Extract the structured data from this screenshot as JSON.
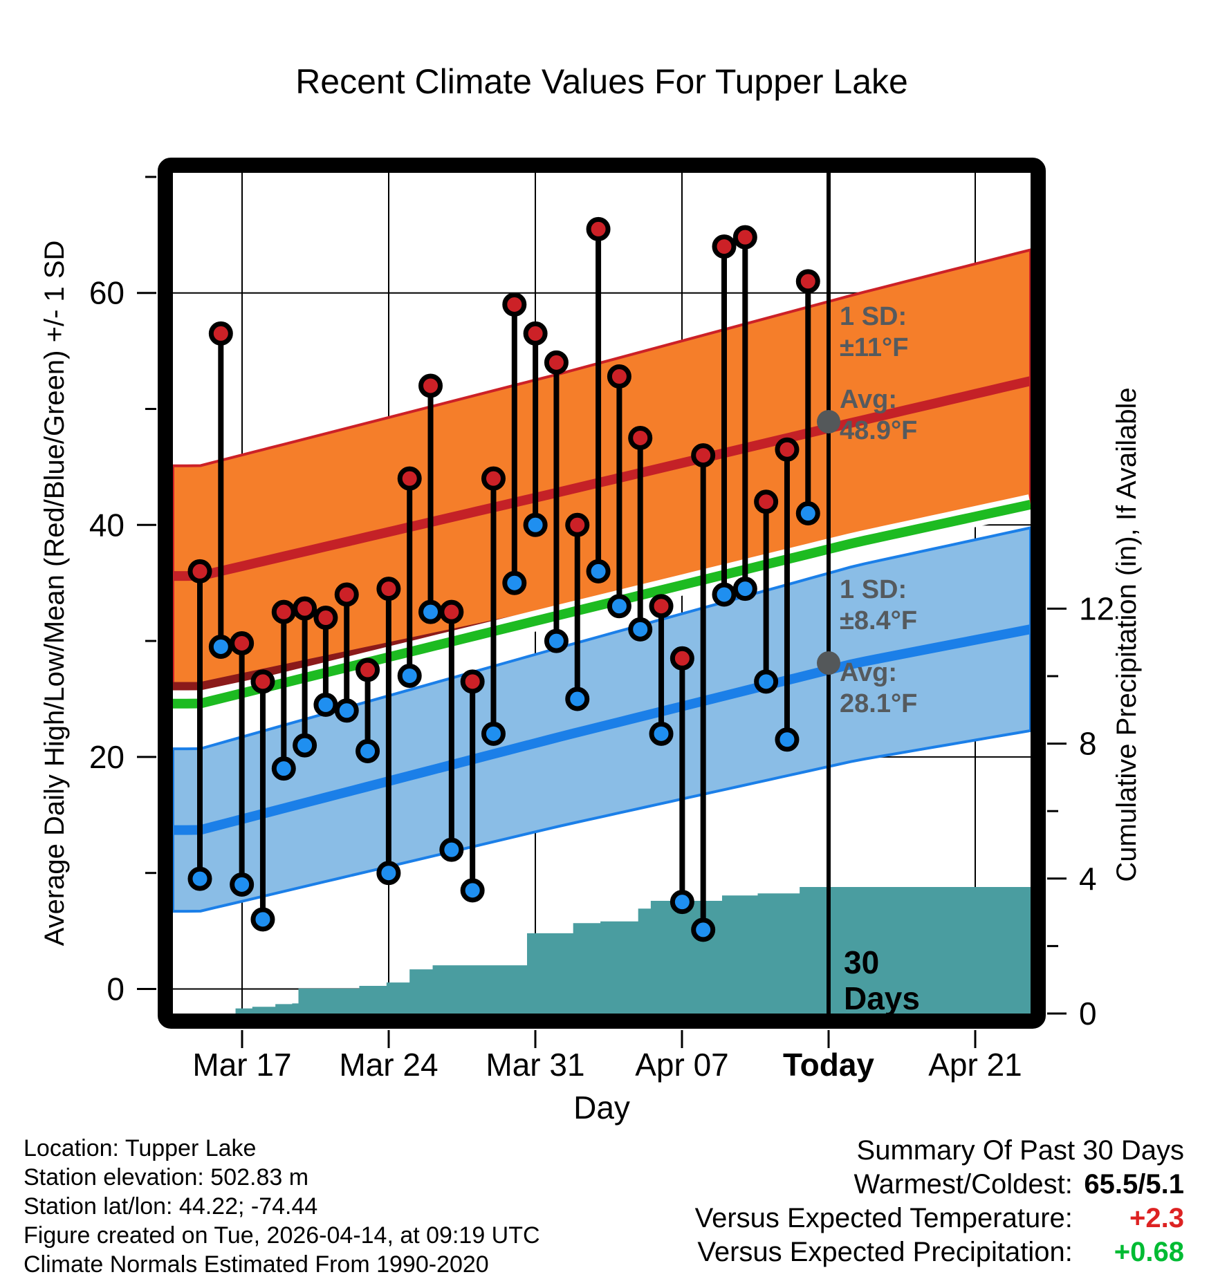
{
  "title": "Recent Climate Values For Tupper Lake",
  "axes": {
    "left": {
      "label": "Average Daily High/Low/Mean (Red/Blue/Green) +/- 1 SD",
      "ticks": [
        0,
        20,
        40,
        60
      ]
    },
    "right": {
      "label": "Cumulative Precipitation (in), If Available",
      "ticks": [
        0,
        4,
        8,
        12
      ]
    },
    "x": {
      "label": "Day",
      "tick_labels": [
        "Mar 17",
        "Mar 24",
        "Mar 31",
        "Apr 07",
        "Today",
        "Apr 21"
      ]
    }
  },
  "annotations": {
    "high": {
      "sd_label": "1 SD:",
      "sd_value": "±11°F",
      "avg_label": "Avg:",
      "avg_value": "48.9°F"
    },
    "low": {
      "sd_label": "1 SD:",
      "sd_value": "±8.4°F",
      "avg_label": "Avg:",
      "avg_value": "28.1°F"
    },
    "window": {
      "line1": "30",
      "line2": "Days"
    }
  },
  "footer": {
    "lines": [
      "Location: Tupper Lake",
      "Station elevation: 502.83 m",
      "Station lat/lon: 44.22; -74.44",
      "Figure created on Tue, 2026-04-14, at 09:19 UTC",
      "Climate Normals Estimated From 1990-2020"
    ]
  },
  "summary": {
    "title": "Summary Of Past 30 Days",
    "rows": [
      {
        "label": "Warmest/Coldest:",
        "value": "65.5/5.1",
        "color_class": "val-warm"
      },
      {
        "label": "Versus Expected Temperature:",
        "value": "+2.3",
        "color_class": "val-temp"
      },
      {
        "label": "Versus Expected Precipitation:",
        "value": "+0.68",
        "color_class": "val-precip"
      }
    ]
  },
  "colors": {
    "high_band_fill": "#f57e2a",
    "high_band_edge": "#cc2127",
    "high_mean": "#c42127",
    "dark_overlap": "#8b1a1a",
    "mean_line": "#1dbb21",
    "mean_halo": "#ffffff",
    "low_band_fill": "#8abde6",
    "low_band_edge": "#1b7fe8",
    "low_mean": "#1b7fe8",
    "precip_fill": "#4a9da0",
    "dot_high": "#cc2127",
    "dot_low": "#1f8ff0",
    "dot_gray": "#54585a",
    "annotation_text": "#555a5e",
    "stem": "#000000"
  },
  "chart_data": {
    "type": "composite",
    "subtype": "climate-strip-chart",
    "temp_axis_range": [
      -2,
      70.4
    ],
    "precip_axis_range": [
      0,
      24.9
    ],
    "x_tick_days": [
      "Mar 17",
      "Mar 24",
      "Mar 31",
      "Apr 07",
      "Today",
      "Apr 21"
    ],
    "daily_obs": {
      "dates": [
        "Mar 15",
        "Mar 16",
        "Mar 17",
        "Mar 18",
        "Mar 19",
        "Mar 20",
        "Mar 21",
        "Mar 22",
        "Mar 23",
        "Mar 24",
        "Mar 25",
        "Mar 26",
        "Mar 27",
        "Mar 28",
        "Mar 29",
        "Mar 30",
        "Mar 31",
        "Apr 01",
        "Apr 02",
        "Apr 03",
        "Apr 04",
        "Apr 05",
        "Apr 06",
        "Apr 07",
        "Apr 08",
        "Apr 09",
        "Apr 10",
        "Apr 11",
        "Apr 12",
        "Apr 13"
      ],
      "high": [
        36,
        56.5,
        29.8,
        26.5,
        32.5,
        32.8,
        32,
        34,
        27.5,
        34.5,
        44,
        52,
        32.5,
        26.5,
        44,
        59,
        56.5,
        54,
        40,
        65.5,
        52.8,
        47.5,
        33,
        28.5,
        46,
        64,
        64.8,
        42,
        46.5,
        61
      ],
      "low": [
        9.5,
        29.5,
        9,
        6,
        19,
        21,
        24.5,
        24,
        20.5,
        10,
        27,
        32.5,
        12,
        8.5,
        22,
        35,
        40,
        30,
        25,
        36,
        33,
        31,
        22,
        7.5,
        5.1,
        34,
        34.5,
        26.5,
        21.5,
        41
      ]
    },
    "normals": {
      "x_anchor_days": [
        0,
        17.3,
        31.3,
        41.0
      ],
      "high_mean": [
        35.6,
        42.9,
        48.9,
        53.0
      ],
      "high_sd": [
        9.5,
        10.2,
        11.0,
        11.35
      ],
      "low_mean": [
        13.7,
        21.8,
        28.1,
        31.5
      ],
      "low_sd": [
        7.0,
        7.7,
        8.4,
        8.8
      ],
      "mid_mean": [
        24.6,
        32.3,
        38.5,
        42.3
      ],
      "today_high_avg": 48.9,
      "today_high_sd": 11.0,
      "today_low_avg": 28.1,
      "today_low_sd": 8.4
    },
    "cumulative_precip_in": {
      "x_day": [
        0.7,
        1.7,
        2.5,
        3.6,
        4.4,
        4.7,
        7.6,
        8.9,
        10.0,
        11.1,
        14.9,
        15.6,
        17.8,
        19.1,
        20.9,
        21.5,
        23.8,
        24.9,
        26.6,
        28.6,
        41.0
      ],
      "value": [
        0.0,
        0.15,
        0.2,
        0.28,
        0.3,
        0.74,
        0.82,
        0.92,
        1.31,
        1.43,
        1.43,
        2.38,
        2.68,
        2.73,
        3.11,
        3.34,
        3.34,
        3.5,
        3.56,
        3.75,
        3.75
      ]
    },
    "title": "Recent Climate Values For Tupper Lake",
    "xlabel": "Day",
    "ylabel_left": "Average Daily High/Low/Mean (Red/Blue/Green) +/- 1 SD",
    "ylabel_right": "Cumulative Precipitation (in), If Available",
    "grid": true,
    "today_marker": "vertical line"
  }
}
